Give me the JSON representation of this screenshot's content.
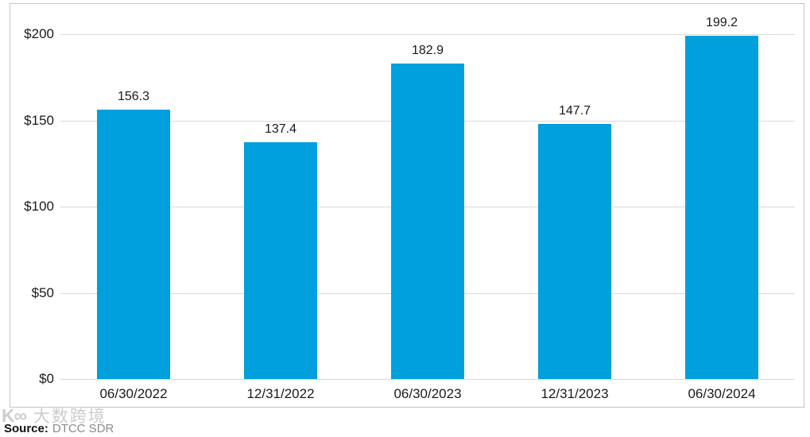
{
  "chart_data": {
    "type": "bar",
    "categories": [
      "06/30/2022",
      "12/31/2022",
      "06/30/2023",
      "12/31/2023",
      "06/30/2024"
    ],
    "values": [
      156.3,
      137.4,
      182.9,
      147.7,
      199.2
    ],
    "value_labels": [
      "156.3",
      "137.4",
      "182.9",
      "147.7",
      "199.2"
    ],
    "title": "",
    "xlabel": "",
    "ylabel": "",
    "ylim": [
      0,
      200
    ],
    "yticks": [
      0,
      50,
      100,
      150,
      200
    ],
    "ytick_labels": [
      "$0",
      "$50",
      "$100",
      "$150",
      "$200"
    ],
    "grid": true,
    "legend": false,
    "bar_color": "#00A0DC",
    "gridline_color": "#d9d9d9",
    "frame_border_color": "#c6c6c6",
    "label_color": "#1a1a1a"
  },
  "source": {
    "label": "Source:",
    "value": "DTCC SDR"
  },
  "watermark": {
    "logo": "K∞",
    "text": "大数跨境"
  }
}
